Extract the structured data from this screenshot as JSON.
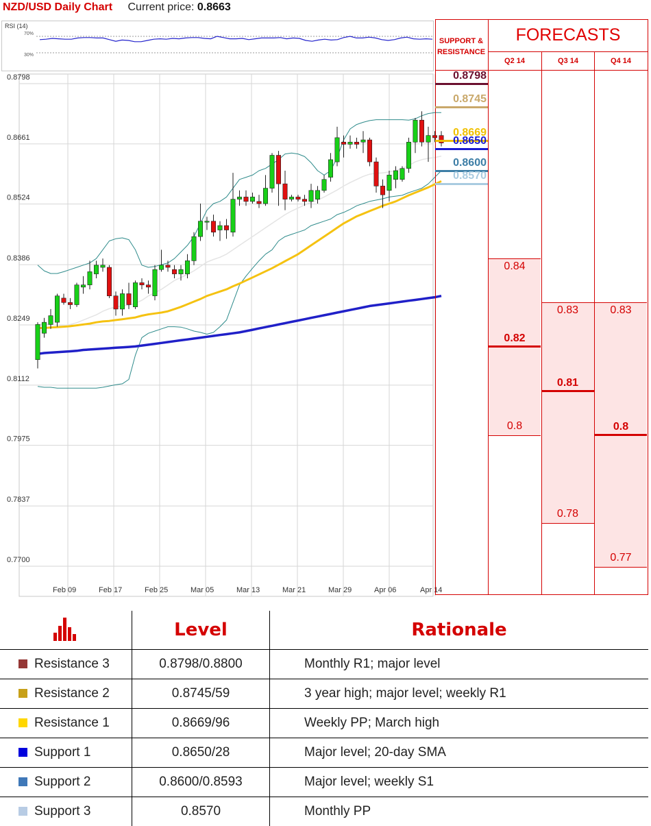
{
  "header": {
    "pair_title": "NZD/USD Daily Chart",
    "price_label": "Current price:",
    "price_value": "0.8663"
  },
  "rsi": {
    "title": "RSI (14)",
    "levels": [
      "70%",
      "30%"
    ],
    "values": [
      62,
      63,
      65,
      64,
      63,
      63,
      66,
      67,
      67,
      66,
      66,
      62,
      58,
      61,
      60,
      57,
      57,
      60,
      63,
      64,
      63,
      65,
      64,
      66,
      67,
      67,
      65,
      64,
      70,
      67,
      64,
      64,
      65,
      62,
      64,
      66,
      66,
      66,
      67,
      64,
      66,
      65,
      60,
      58,
      61,
      63,
      61,
      62,
      67,
      70,
      66,
      66,
      68,
      66,
      62,
      60,
      62,
      66,
      68,
      64,
      63,
      64,
      63
    ]
  },
  "chart_data": {
    "type": "candlestick",
    "x_ticks": [
      "Feb 09",
      "Feb 17",
      "Feb 25",
      "Mar 05",
      "Mar 13",
      "Mar 21",
      "Mar 29",
      "Apr 06",
      "Apr 14"
    ],
    "y_ticks": [
      "0.8798",
      "0.8661",
      "0.8524",
      "0.8386",
      "0.8249",
      "0.8112",
      "0.7975",
      "0.7837",
      "0.7700"
    ],
    "ylim": [
      0.77,
      0.8798
    ],
    "candles": [
      [
        0.817,
        0.825,
        0.815,
        0.8255
      ],
      [
        0.823,
        0.8255,
        0.822,
        0.8265
      ],
      [
        0.825,
        0.827,
        0.824,
        0.8285
      ],
      [
        0.8255,
        0.8315,
        0.8245,
        0.832
      ],
      [
        0.831,
        0.83,
        0.8295,
        0.832
      ],
      [
        0.83,
        0.8295,
        0.8285,
        0.831
      ],
      [
        0.8295,
        0.834,
        0.829,
        0.8345
      ],
      [
        0.8335,
        0.834,
        0.832,
        0.836
      ],
      [
        0.834,
        0.837,
        0.833,
        0.8395
      ],
      [
        0.8365,
        0.8385,
        0.8355,
        0.8395
      ],
      [
        0.838,
        0.8385,
        0.837,
        0.84
      ],
      [
        0.838,
        0.8315,
        0.831,
        0.8385
      ],
      [
        0.8315,
        0.8285,
        0.827,
        0.8325
      ],
      [
        0.8285,
        0.832,
        0.827,
        0.833
      ],
      [
        0.832,
        0.8295,
        0.8285,
        0.8345
      ],
      [
        0.829,
        0.8345,
        0.8285,
        0.835
      ],
      [
        0.8345,
        0.834,
        0.833,
        0.8355
      ],
      [
        0.834,
        0.8335,
        0.832,
        0.835
      ],
      [
        0.8315,
        0.8375,
        0.8305,
        0.8385
      ],
      [
        0.8375,
        0.8385,
        0.837,
        0.842
      ],
      [
        0.8385,
        0.838,
        0.837,
        0.8395
      ],
      [
        0.8375,
        0.8365,
        0.8355,
        0.8385
      ],
      [
        0.8365,
        0.8375,
        0.835,
        0.8385
      ],
      [
        0.8365,
        0.8395,
        0.8355,
        0.841
      ],
      [
        0.8395,
        0.845,
        0.8385,
        0.846
      ],
      [
        0.845,
        0.8485,
        0.844,
        0.8525
      ],
      [
        0.8485,
        0.8485,
        0.8465,
        0.8495
      ],
      [
        0.8485,
        0.846,
        0.845,
        0.85
      ],
      [
        0.8465,
        0.8475,
        0.844,
        0.8485
      ],
      [
        0.8475,
        0.8465,
        0.8445,
        0.849
      ],
      [
        0.846,
        0.8535,
        0.845,
        0.8595
      ],
      [
        0.8535,
        0.854,
        0.852,
        0.8555
      ],
      [
        0.854,
        0.853,
        0.852,
        0.8555
      ],
      [
        0.853,
        0.854,
        0.8525,
        0.855
      ],
      [
        0.853,
        0.8525,
        0.8515,
        0.8545
      ],
      [
        0.8525,
        0.856,
        0.852,
        0.859
      ],
      [
        0.856,
        0.8635,
        0.855,
        0.864
      ],
      [
        0.8635,
        0.857,
        0.852,
        0.8645
      ],
      [
        0.857,
        0.8535,
        0.851,
        0.86
      ],
      [
        0.8535,
        0.854,
        0.853,
        0.8545
      ],
      [
        0.854,
        0.8535,
        0.853,
        0.8545
      ],
      [
        0.8535,
        0.853,
        0.852,
        0.8545
      ],
      [
        0.853,
        0.8555,
        0.8515,
        0.857
      ],
      [
        0.8535,
        0.8555,
        0.8525,
        0.8565
      ],
      [
        0.8555,
        0.858,
        0.855,
        0.859
      ],
      [
        0.8585,
        0.8625,
        0.8575,
        0.864
      ],
      [
        0.862,
        0.8675,
        0.861,
        0.87
      ],
      [
        0.8665,
        0.866,
        0.863,
        0.868
      ],
      [
        0.866,
        0.8665,
        0.865,
        0.868
      ],
      [
        0.8665,
        0.866,
        0.865,
        0.8675
      ],
      [
        0.8665,
        0.867,
        0.864,
        0.869
      ],
      [
        0.867,
        0.862,
        0.861,
        0.8675
      ],
      [
        0.862,
        0.8565,
        0.855,
        0.863
      ],
      [
        0.8565,
        0.8545,
        0.8515,
        0.858
      ],
      [
        0.8555,
        0.859,
        0.853,
        0.86
      ],
      [
        0.858,
        0.86,
        0.856,
        0.861
      ],
      [
        0.858,
        0.8605,
        0.8575,
        0.861
      ],
      [
        0.8605,
        0.8665,
        0.8595,
        0.8675
      ],
      [
        0.8665,
        0.8715,
        0.864,
        0.872
      ],
      [
        0.8715,
        0.8665,
        0.8655,
        0.8735
      ],
      [
        0.8665,
        0.868,
        0.862,
        0.87
      ],
      [
        0.868,
        0.8675,
        0.8665,
        0.869
      ],
      [
        0.868,
        0.8663,
        0.8655,
        0.869
      ]
    ],
    "sma20": [
      0.825,
      0.8252,
      0.825,
      0.8248,
      0.8248,
      0.825,
      0.8254,
      0.826,
      0.8266,
      0.8272,
      0.828,
      0.8286,
      0.829,
      0.8292,
      0.8294,
      0.8298,
      0.8305,
      0.8315,
      0.8322,
      0.833,
      0.834,
      0.835,
      0.8357,
      0.8364,
      0.8372,
      0.8382,
      0.8392,
      0.8398,
      0.8403,
      0.841,
      0.842,
      0.843,
      0.844,
      0.845,
      0.846,
      0.847,
      0.848,
      0.849,
      0.85,
      0.8508,
      0.8515,
      0.8522,
      0.8528,
      0.8533,
      0.854,
      0.8548,
      0.8556,
      0.8565,
      0.8573,
      0.858,
      0.8587,
      0.8592,
      0.8594,
      0.8595,
      0.8597,
      0.86,
      0.8605,
      0.8612,
      0.862,
      0.8625,
      0.8628,
      0.863,
      0.8633
    ],
    "sma50": [
      0.8242,
      0.8242,
      0.8243,
      0.8244,
      0.8245,
      0.8246,
      0.8248,
      0.825,
      0.8252,
      0.8255,
      0.8257,
      0.8258,
      0.826,
      0.8262,
      0.8264,
      0.8266,
      0.827,
      0.8273,
      0.8275,
      0.8277,
      0.828,
      0.8285,
      0.829,
      0.8296,
      0.8302,
      0.8308,
      0.8315,
      0.832,
      0.8325,
      0.833,
      0.8337,
      0.8343,
      0.835,
      0.8357,
      0.8364,
      0.8371,
      0.8378,
      0.8386,
      0.8394,
      0.8402,
      0.841,
      0.842,
      0.843,
      0.844,
      0.845,
      0.846,
      0.847,
      0.848,
      0.8488,
      0.8496,
      0.8502,
      0.8508,
      0.8514,
      0.852,
      0.8525,
      0.853,
      0.8537,
      0.8544,
      0.855,
      0.8556,
      0.8562,
      0.8569,
      0.8576
    ],
    "sma200": [
      0.8183,
      0.8185,
      0.8186,
      0.8187,
      0.8188,
      0.8189,
      0.819,
      0.8192,
      0.8193,
      0.8194,
      0.8195,
      0.8196,
      0.8197,
      0.8198,
      0.8199,
      0.82,
      0.8202,
      0.8204,
      0.8206,
      0.8208,
      0.821,
      0.8212,
      0.8214,
      0.8216,
      0.8218,
      0.822,
      0.8222,
      0.8224,
      0.8226,
      0.8228,
      0.823,
      0.8232,
      0.8235,
      0.8238,
      0.8241,
      0.8244,
      0.8247,
      0.825,
      0.8253,
      0.8256,
      0.8259,
      0.8262,
      0.8265,
      0.8268,
      0.8271,
      0.8274,
      0.8277,
      0.828,
      0.8283,
      0.8286,
      0.8289,
      0.8292,
      0.8294,
      0.8296,
      0.8298,
      0.83,
      0.8302,
      0.8304,
      0.8306,
      0.8308,
      0.831,
      0.8312,
      0.8315
    ],
    "bb_upper": [
      0.8385,
      0.8372,
      0.8366,
      0.8366,
      0.837,
      0.8375,
      0.838,
      0.8385,
      0.839,
      0.84,
      0.842,
      0.844,
      0.8445,
      0.8447,
      0.8443,
      0.842,
      0.8385,
      0.838,
      0.8382,
      0.8386,
      0.839,
      0.84,
      0.8415,
      0.843,
      0.845,
      0.848,
      0.851,
      0.8525,
      0.853,
      0.854,
      0.856,
      0.858,
      0.8585,
      0.859,
      0.86,
      0.8605,
      0.8615,
      0.8625,
      0.8638,
      0.864,
      0.8638,
      0.8632,
      0.8618,
      0.86,
      0.859,
      0.86,
      0.863,
      0.867,
      0.8695,
      0.8705,
      0.871,
      0.8714,
      0.8716,
      0.8716,
      0.8716,
      0.8716,
      0.8716,
      0.8715,
      0.8718,
      0.8725,
      0.873,
      0.8732,
      0.8732
    ],
    "bb_lower": [
      0.8109,
      0.8107,
      0.8107,
      0.8105,
      0.8105,
      0.8105,
      0.8105,
      0.8105,
      0.8105,
      0.8105,
      0.8107,
      0.811,
      0.8113,
      0.8115,
      0.8125,
      0.818,
      0.822,
      0.823,
      0.8235,
      0.824,
      0.8245,
      0.8245,
      0.8244,
      0.824,
      0.8235,
      0.8232,
      0.8228,
      0.8232,
      0.8245,
      0.826,
      0.83,
      0.834,
      0.836,
      0.8378,
      0.8395,
      0.841,
      0.842,
      0.844,
      0.845,
      0.8455,
      0.846,
      0.8465,
      0.8475,
      0.848,
      0.8485,
      0.849,
      0.85,
      0.8505,
      0.8512,
      0.852,
      0.8525,
      0.853,
      0.8533,
      0.8536,
      0.854,
      0.8542,
      0.8544,
      0.855,
      0.8555,
      0.856,
      0.857,
      0.8585,
      0.86
    ]
  },
  "sr_levels": [
    {
      "label": "0.8798",
      "color": "#6b0f2e",
      "value": 0.8798
    },
    {
      "label": "0.8745",
      "color": "#c9a86a",
      "value": 0.8745
    },
    {
      "label": "0.8669",
      "color": "#f0c000",
      "value": 0.8669
    },
    {
      "label": "0.8650",
      "color": "#1a1ad0",
      "value": 0.865
    },
    {
      "label": "0.8600",
      "color": "#3d7ea6",
      "value": 0.86
    },
    {
      "label": "0.8570",
      "color": "#a9cbe0",
      "value": 0.857
    }
  ],
  "forecasts": {
    "title": "FORECASTS",
    "sr_title_line1": "SUPPORT &",
    "sr_title_line2": "RESISTANCE",
    "quarters": [
      {
        "label": "Q2 14",
        "high": 0.84,
        "high_label": "0.84",
        "mid": 0.82,
        "mid_label": "0.82",
        "low": 0.8,
        "low_label": "0.8"
      },
      {
        "label": "Q3 14",
        "high": 0.83,
        "high_label": "0.83",
        "mid": 0.81,
        "mid_label": "0.81",
        "low": 0.78,
        "low_label": "0.78"
      },
      {
        "label": "Q4 14",
        "high": 0.83,
        "high_label": "0.83",
        "mid": 0.8,
        "mid_label": "0.8",
        "low": 0.77,
        "low_label": "0.77"
      }
    ]
  },
  "table": {
    "col_level": "Level",
    "col_rationale": "Rationale",
    "rows": [
      {
        "name": "Resistance 3",
        "color": "#953735",
        "level": "0.8798/0.8800",
        "rationale": "Monthly R1; major level"
      },
      {
        "name": "Resistance 2",
        "color": "#c7a019",
        "level": "0.8745/59",
        "rationale": "3 year high; major level; weekly R1"
      },
      {
        "name": "Resistance 1",
        "color": "#ffd700",
        "level": "0.8669/96",
        "rationale": "Weekly PP; March high"
      },
      {
        "name": "Support 1",
        "color": "#0000dd",
        "level": "0.8650/28",
        "rationale": "Major level; 20-day SMA"
      },
      {
        "name": "Support 2",
        "color": "#3f78b8",
        "level": "0.8600/0.8593",
        "rationale": "Major level; weekly S1"
      },
      {
        "name": "Support 3",
        "color": "#b8cce4",
        "level": "0.8570",
        "rationale": "Monthly PP"
      }
    ]
  }
}
